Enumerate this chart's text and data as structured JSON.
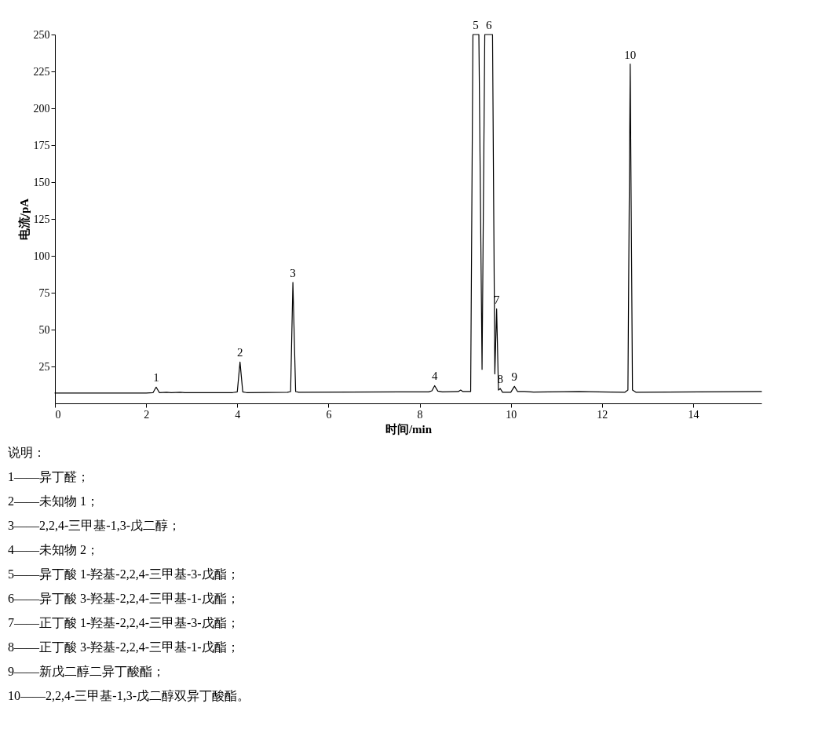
{
  "chart_data": {
    "type": "line",
    "xlabel": "时间/min",
    "ylabel": "电流/pA",
    "xlim": [
      0,
      15.5
    ],
    "ylim": [
      0,
      250
    ],
    "xticks": [
      0,
      2,
      4,
      6,
      8,
      10,
      12,
      14
    ],
    "yticks": [
      25,
      50,
      75,
      100,
      125,
      150,
      175,
      200,
      225,
      250
    ],
    "grid": false,
    "marker": "none",
    "line_style": "solid",
    "series": [
      {
        "color": "#000000",
        "x": [
          0,
          2.0,
          2.15,
          2.22,
          2.29,
          2.45,
          2.55,
          2.75,
          2.85,
          3.9,
          4.0,
          4.06,
          4.12,
          4.2,
          5.1,
          5.17,
          5.22,
          5.28,
          5.35,
          8.2,
          8.27,
          8.33,
          8.4,
          8.5,
          8.85,
          8.9,
          8.95,
          9.12,
          9.17,
          9.3,
          9.37,
          9.43,
          9.6,
          9.65,
          9.69,
          9.73,
          9.77,
          9.82,
          10.0,
          10.08,
          10.15,
          10.3,
          10.5,
          11.5,
          12.5,
          12.57,
          12.62,
          12.67,
          12.75,
          15.5
        ],
        "values": [
          7,
          7,
          7.2,
          11,
          7.3,
          7.5,
          7.2,
          7.5,
          7.2,
          7.3,
          7.8,
          28,
          7.8,
          7.3,
          7.5,
          8,
          82,
          8,
          7.5,
          7.8,
          8.5,
          12,
          8.3,
          7.8,
          8,
          9,
          8,
          8,
          250,
          250,
          23,
          250,
          250,
          20,
          64,
          9,
          10,
          7.5,
          7.5,
          11.5,
          8,
          8,
          7.6,
          8,
          7.5,
          9,
          230,
          9,
          7.5,
          8
        ]
      }
    ],
    "annotations": [
      {
        "text": "1",
        "x": 2.22,
        "y": 11
      },
      {
        "text": "2",
        "x": 4.06,
        "y": 28
      },
      {
        "text": "3",
        "x": 5.22,
        "y": 82
      },
      {
        "text": "4",
        "x": 8.33,
        "y": 12
      },
      {
        "text": "5",
        "x": 9.23,
        "y": 250
      },
      {
        "text": "6",
        "x": 9.52,
        "y": 250
      },
      {
        "text": "7",
        "x": 9.69,
        "y": 64
      },
      {
        "text": "8",
        "x": 9.77,
        "y": 10
      },
      {
        "text": "9",
        "x": 10.08,
        "y": 11.5
      },
      {
        "text": "10",
        "x": 12.62,
        "y": 230
      },
      "说明：",
      "1——异丁醛；",
      "2——未知物 1；",
      "3——2,2,4-三甲基-1,3-戊二醇；",
      "4——未知物 2；",
      "5——异丁酸 1-羟基-2,2,4-三甲基-3-戊酯；",
      "6——异丁酸 3-羟基-2,2,4-三甲基-1-戊酯；",
      "7——正丁酸 1-羟基-2,2,4-三甲基-3-戊酯；",
      "8——正丁酸 3-羟基-2,2,4-三甲基-1-戊酯；",
      "9——新戊二醇二异丁酸酯；",
      "10——2,2,4-三甲基-1,3-戊二醇双异丁酸酯。"
    ]
  }
}
